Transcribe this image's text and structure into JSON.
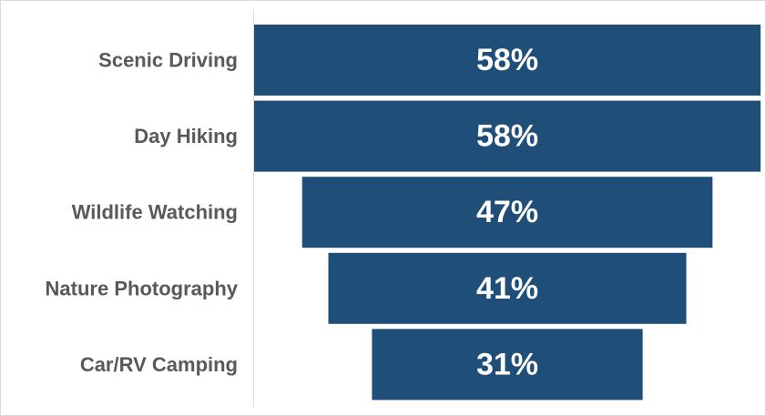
{
  "chart_data": {
    "type": "bar",
    "orientation": "horizontal-centered-funnel",
    "categories": [
      "Scenic Driving",
      "Day Hiking",
      "Wildlife Watching",
      "Nature Photography",
      "Car/RV Camping"
    ],
    "values": [
      58,
      58,
      47,
      41,
      31
    ],
    "value_labels": [
      "58%",
      "58%",
      "47%",
      "41%",
      "31%"
    ],
    "title": "",
    "xlabel": "",
    "ylabel": "",
    "xlim": [
      0,
      58
    ],
    "grid": false,
    "legend": "none"
  },
  "colors": {
    "bar": "#1f4e79",
    "label_text": "#595959",
    "value_text": "#ffffff",
    "frame": "#d9d9d9",
    "axis_line": "#d9d9d9"
  }
}
